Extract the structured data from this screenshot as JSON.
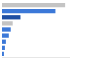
{
  "chart_data": {
    "type": "bar",
    "orientation": "horizontal",
    "categories": [
      null,
      null,
      null,
      null,
      null,
      null,
      null,
      null,
      null
    ],
    "values": [
      65,
      55,
      19,
      11,
      9,
      7,
      4,
      3,
      2
    ],
    "colors": [
      "#c4c4c4",
      "#3b78d8",
      "#1f4fa3",
      "#c4c4c4",
      "#3b78d8",
      "#3b78d8",
      "#3b78d8",
      "#3b78d8",
      "#3b78d8"
    ],
    "xlim": [
      0,
      70
    ],
    "tick_labels": false,
    "grid": false
  }
}
